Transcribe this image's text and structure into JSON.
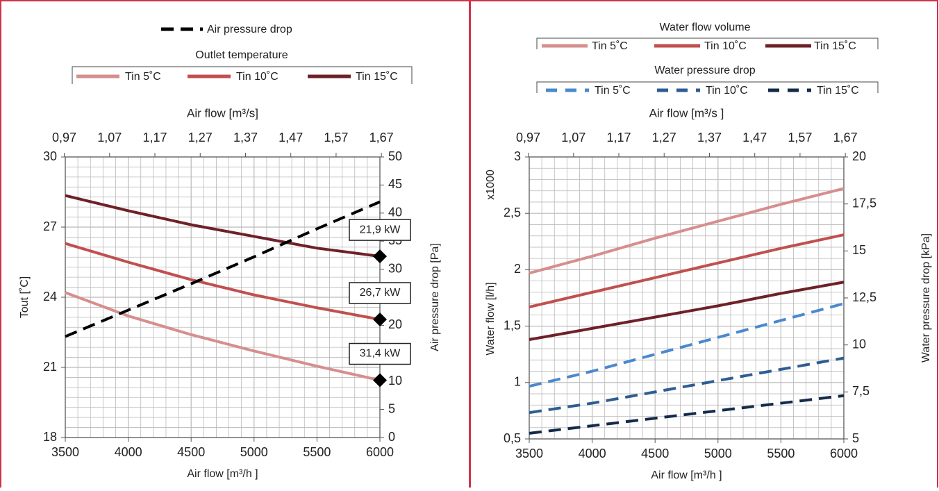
{
  "colors": {
    "panel_border": "#d0324b",
    "grid": "#b9b9b9",
    "axis": "#555555",
    "tin5": "#d68e8e",
    "tin10": "#c0504f",
    "tin15": "#6e2127",
    "wpd5": "#4a89cf",
    "wpd10": "#2e5d92",
    "wpd15": "#142a4a",
    "air_pd": "#000000"
  },
  "chart_data": [
    {
      "type": "line",
      "legend_top": {
        "label": "Air pressure drop"
      },
      "legend_group": {
        "title": "Outlet temperature",
        "items": [
          "Tin 5˚C",
          "Tin 10˚C",
          "Tin 15˚C"
        ]
      },
      "top_axis": {
        "label": "Air flow  [m³/s]",
        "ticks": [
          "0,97",
          "1,07",
          "1,17",
          "1,27",
          "1,37",
          "1,47",
          "1,57",
          "1,67"
        ]
      },
      "xlabel": "Air flow  [m³/h ]",
      "xlim": [
        3500,
        6000
      ],
      "xticks": [
        "3500",
        "4000",
        "4500",
        "5000",
        "5500",
        "6000"
      ],
      "ylabel_left": "Tout [˚C]",
      "ylim_left": [
        18,
        30
      ],
      "yticks_left": [
        "30",
        "27",
        "24",
        "21",
        "18"
      ],
      "ylabel_right": "Air pressure drop   [Pa]",
      "ylim_right": [
        0,
        50
      ],
      "yticks_right": [
        "50",
        "45",
        "40",
        "35",
        "30",
        "25",
        "20",
        "15",
        "10",
        "5",
        "0"
      ],
      "x": [
        3500,
        4000,
        4500,
        5000,
        5500,
        6000
      ],
      "series": [
        {
          "name": "Tin 5˚C",
          "axis": "left",
          "values": [
            24.2,
            23.2,
            22.4,
            21.7,
            21.05,
            20.45
          ]
        },
        {
          "name": "Tin 10˚C",
          "axis": "left",
          "values": [
            26.3,
            25.5,
            24.75,
            24.1,
            23.55,
            23.05
          ]
        },
        {
          "name": "Tin 15˚C",
          "axis": "left",
          "values": [
            28.35,
            27.7,
            27.1,
            26.6,
            26.1,
            25.75
          ]
        },
        {
          "name": "Air pressure drop",
          "axis": "right",
          "dashed": true,
          "values": [
            18.0,
            22.7,
            27.4,
            32.2,
            37.2,
            42.0
          ]
        }
      ],
      "callouts": [
        {
          "label": "21,9 kW",
          "x": 6000,
          "y": 25.75
        },
        {
          "label": "26,7 kW",
          "x": 6000,
          "y": 23.05
        },
        {
          "label": "31,4 kW",
          "x": 6000,
          "y": 20.45
        }
      ]
    },
    {
      "type": "line",
      "legend_group_1": {
        "title": "Water flow volume",
        "items": [
          "Tin 5˚C",
          "Tin 10˚C",
          "Tin 15˚C"
        ]
      },
      "legend_group_2": {
        "title": "Water pressure drop",
        "items": [
          "Tin 5˚C",
          "Tin 10˚C",
          "Tin 15˚C"
        ]
      },
      "top_axis": {
        "label": "Air flow  [m³/s ]",
        "ticks": [
          "0,97",
          "1,07",
          "1,17",
          "1,27",
          "1,37",
          "1,47",
          "1,57",
          "1,67"
        ]
      },
      "xlabel": "Air flow  [m³/h ]",
      "xlim": [
        3500,
        6000
      ],
      "xticks": [
        "3500",
        "4000",
        "4500",
        "5000",
        "5500",
        "6000"
      ],
      "ylabel_left": "Water flow   [l/h]",
      "multiplier": "x1000",
      "ylim_left": [
        0.5,
        3
      ],
      "yticks_left": [
        "3",
        "2,5",
        "2",
        "1,5",
        "1",
        "0,5"
      ],
      "ylabel_right": "Water pressure drop   [kPa]",
      "ylim_right": [
        5,
        20
      ],
      "yticks_right": [
        "20",
        "17,5",
        "15",
        "12,5",
        "10",
        "7,5",
        "5"
      ],
      "x": [
        3500,
        4000,
        4500,
        5000,
        5500,
        6000
      ],
      "series": [
        {
          "name": "Tin 5˚C",
          "group": "Water flow volume",
          "axis": "left",
          "values": [
            1.97,
            2.12,
            2.28,
            2.43,
            2.58,
            2.72
          ]
        },
        {
          "name": "Tin 10˚C",
          "group": "Water flow volume",
          "axis": "left",
          "values": [
            1.67,
            1.8,
            1.93,
            2.06,
            2.19,
            2.31
          ]
        },
        {
          "name": "Tin 15˚C",
          "group": "Water flow volume",
          "axis": "left",
          "values": [
            1.38,
            1.48,
            1.58,
            1.68,
            1.79,
            1.89
          ]
        },
        {
          "name": "Tin 5˚C",
          "group": "Water pressure drop",
          "axis": "right",
          "dashed": true,
          "values": [
            7.8,
            8.6,
            9.5,
            10.4,
            11.3,
            12.2
          ]
        },
        {
          "name": "Tin 10˚C",
          "group": "Water pressure drop",
          "axis": "right",
          "dashed": true,
          "values": [
            6.4,
            6.9,
            7.5,
            8.1,
            8.7,
            9.3
          ]
        },
        {
          "name": "Tin 15˚C",
          "group": "Water pressure drop",
          "axis": "right",
          "dashed": true,
          "values": [
            5.3,
            5.7,
            6.1,
            6.5,
            6.9,
            7.3
          ]
        }
      ]
    }
  ]
}
